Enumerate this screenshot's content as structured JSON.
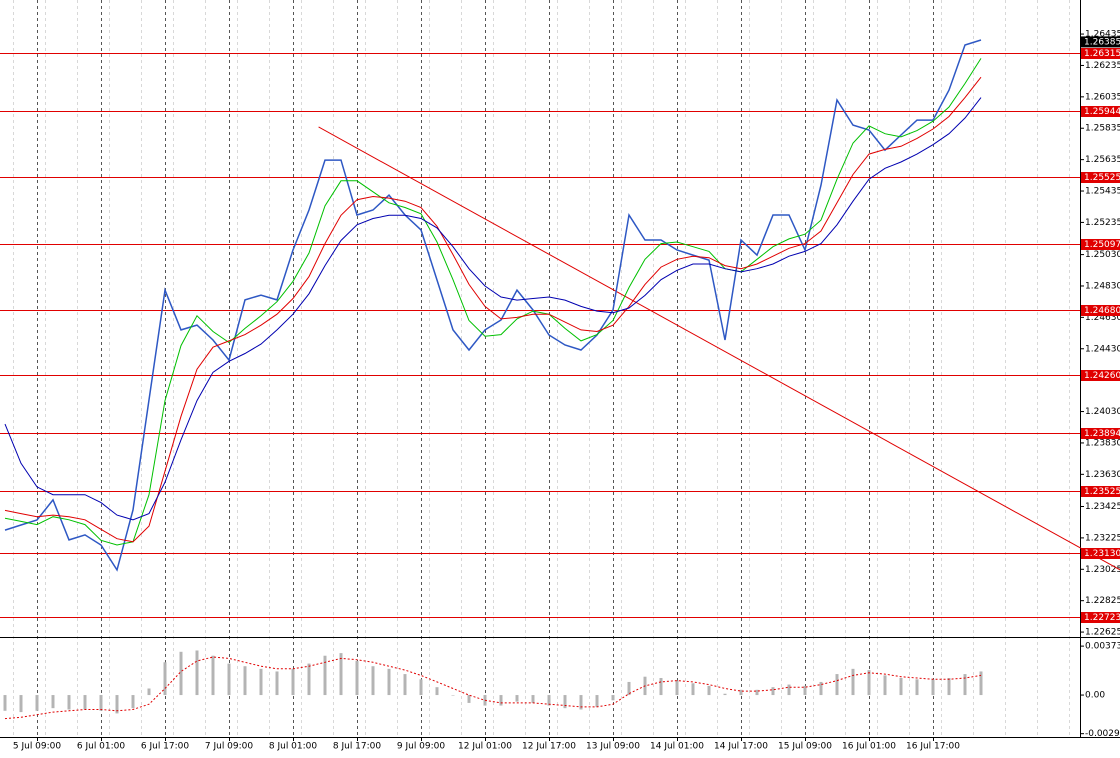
{
  "chart_data": [
    {
      "type": "line",
      "categories": [
        null,
        null,
        "5 Jul 09:00",
        null,
        null,
        null,
        "6 Jul 01:00",
        null,
        null,
        null,
        "6 Jul 17:00",
        null,
        null,
        null,
        "7 Jul 09:00",
        null,
        null,
        null,
        "8 Jul 01:00",
        null,
        null,
        null,
        "8 Jul 17:00",
        null,
        null,
        null,
        "9 Jul 09:00",
        null,
        null,
        null,
        "12 Jul 01:00",
        null,
        null,
        null,
        "12 Jul 17:00",
        null,
        null,
        null,
        "13 Jul 09:00",
        null,
        null,
        null,
        "14 Jul 01:00",
        null,
        null,
        null,
        "14 Jul 17:00",
        null,
        null,
        null,
        "15 Jul 09:00",
        null,
        null,
        null,
        "16 Jul 01:00",
        null,
        null,
        null,
        "16 Jul 17:00",
        null,
        null,
        null
      ],
      "series": [
        {
          "color": "#2e58c4",
          "values": [
            1.23275,
            1.23307,
            1.23339,
            1.23467,
            1.23212,
            1.23244,
            1.2318,
            1.23021,
            1.23403,
            1.24104,
            1.24804,
            1.2455,
            1.24581,
            1.24486,
            1.24358,
            1.24741,
            1.24772,
            1.24741,
            1.25059,
            1.25314,
            1.25632,
            1.25632,
            1.25282,
            1.25314,
            1.25409,
            1.25282,
            1.25187,
            1.24868,
            1.2455,
            1.24422,
            1.2455,
            1.24613,
            1.24804,
            1.24677,
            1.24518,
            1.24454,
            1.24422,
            1.24518,
            1.24677,
            1.25282,
            1.25123,
            1.25123,
            1.25059,
            1.25027,
            1.24995,
            1.24486,
            1.25123,
            1.25027,
            1.25282,
            1.25282,
            1.25059,
            1.25473,
            1.26015,
            1.25855,
            1.25824,
            1.25696,
            1.25792,
            1.25887,
            1.25887,
            1.26078,
            1.26365,
            1.26397
          ]
        },
        {
          "color": "#00c000",
          "values": [
            1.2335,
            1.2333,
            1.2331,
            1.2336,
            1.2334,
            1.2331,
            1.2321,
            1.2318,
            1.232,
            1.235,
            1.241,
            1.2445,
            1.2464,
            1.2454,
            1.2447,
            1.2456,
            1.2464,
            1.2473,
            1.2486,
            1.2504,
            1.2534,
            1.255,
            1.255,
            1.2543,
            1.2536,
            1.2533,
            1.2529,
            1.2511,
            1.2487,
            1.2461,
            1.2451,
            1.2452,
            1.2462,
            1.2467,
            1.2465,
            1.2456,
            1.2448,
            1.2452,
            1.2461,
            1.2482,
            1.25,
            1.251,
            1.2511,
            1.2508,
            1.2505,
            1.2494,
            1.2492,
            1.25,
            1.2508,
            1.2513,
            1.2516,
            1.2525,
            1.2551,
            1.2574,
            1.2585,
            1.258,
            1.2578,
            1.2582,
            1.2588,
            1.2597,
            1.2612,
            1.2628
          ]
        },
        {
          "color": "#e00000",
          "values": [
            1.234,
            1.2338,
            1.2336,
            1.2337,
            1.2336,
            1.2334,
            1.2328,
            1.2322,
            1.232,
            1.233,
            1.2365,
            1.24,
            1.243,
            1.2444,
            1.2448,
            1.2452,
            1.2458,
            1.2465,
            1.2475,
            1.2489,
            1.251,
            1.2528,
            1.2538,
            1.254,
            1.2539,
            1.2537,
            1.2533,
            1.2521,
            1.2503,
            1.2484,
            1.247,
            1.2462,
            1.2463,
            1.2465,
            1.2465,
            1.246,
            1.2455,
            1.2454,
            1.2458,
            1.247,
            1.2484,
            1.2495,
            1.25,
            1.2502,
            1.2501,
            1.2496,
            1.2494,
            1.2497,
            1.2502,
            1.2507,
            1.251,
            1.2518,
            1.2536,
            1.2554,
            1.2567,
            1.257,
            1.2572,
            1.2577,
            1.2583,
            1.2591,
            1.2603,
            1.2616
          ]
        },
        {
          "color": "#0000b0",
          "values": [
            1.2395,
            1.237,
            1.2355,
            1.235,
            1.235,
            1.235,
            1.2345,
            1.2337,
            1.2334,
            1.2338,
            1.2358,
            1.2385,
            1.241,
            1.2428,
            1.2435,
            1.244,
            1.2446,
            1.2455,
            1.2465,
            1.2478,
            1.2496,
            1.2512,
            1.2522,
            1.2526,
            1.2528,
            1.2528,
            1.2526,
            1.252,
            1.2508,
            1.2494,
            1.2483,
            1.2476,
            1.2474,
            1.2475,
            1.2476,
            1.2474,
            1.247,
            1.2467,
            1.2466,
            1.2469,
            1.2477,
            1.2487,
            1.2493,
            1.2497,
            1.2497,
            1.2494,
            1.2492,
            1.2494,
            1.2497,
            1.2502,
            1.2505,
            1.251,
            1.2522,
            1.2537,
            1.2551,
            1.2558,
            1.2562,
            1.2567,
            1.2573,
            1.258,
            1.259,
            1.2603
          ]
        }
      ],
      "ylim": [
        1.226,
        1.26652
      ],
      "yticks": [
        {
          "value": 1.26435,
          "label": "1.26435"
        },
        {
          "value": 1.26235,
          "label": "1.26235"
        },
        {
          "value": 1.26035,
          "label": "1.26035"
        },
        {
          "value": 1.25835,
          "label": "1.25835"
        },
        {
          "value": 1.25635,
          "label": "1.25635"
        },
        {
          "value": 1.25435,
          "label": "1.25435"
        },
        {
          "value": 1.25235,
          "label": "1.25235"
        },
        {
          "value": 1.2503,
          "label": "1.25030"
        },
        {
          "value": 1.2483,
          "label": "1.24830"
        },
        {
          "value": 1.2463,
          "label": "1.24630"
        },
        {
          "value": 1.2443,
          "label": "1.24430"
        },
        {
          "value": 1.2403,
          "label": "1.24030"
        },
        {
          "value": 1.2383,
          "label": "1.23830"
        },
        {
          "value": 1.2363,
          "label": "1.23630"
        },
        {
          "value": 1.23425,
          "label": "1.23425"
        },
        {
          "value": 1.23225,
          "label": "1.23225"
        },
        {
          "value": 1.23025,
          "label": "1.23025"
        },
        {
          "value": 1.22825,
          "label": "1.22825"
        },
        {
          "value": 1.22625,
          "label": "1.22625"
        }
      ],
      "levels": [
        1.26315,
        1.25944,
        1.25525,
        1.25097,
        {
          "value": 1.2468,
          "label": "1.24680"
        },
        {
          "value": 1.2426,
          "label": "1.24260"
        },
        1.23894,
        1.23525,
        {
          "value": 1.2313,
          "label": "1.23130"
        },
        1.22723
      ],
      "level_color": "#e00000",
      "current_price": 1.26385,
      "trendline": {
        "x": [
          19.6,
          69.7
        ],
        "values": [
          1.25843,
          1.23021
        ],
        "color": "#e00000"
      },
      "grid": true
    },
    {
      "type": "bar",
      "values": [
        -0.0012,
        -0.0013,
        -0.0012,
        -0.001,
        -0.0011,
        -0.0011,
        -0.0012,
        -0.0014,
        -0.001,
        0.0005,
        0.0025,
        0.0033,
        0.0034,
        0.003,
        0.0024,
        0.0022,
        0.002,
        0.0018,
        0.002,
        0.0024,
        0.003,
        0.0032,
        0.0026,
        0.0022,
        0.002,
        0.0016,
        0.0012,
        0.0006,
        0.0,
        -0.0006,
        -0.0008,
        -0.0008,
        -0.0005,
        -0.0006,
        -0.0008,
        -0.001,
        -0.0011,
        -0.0009,
        -0.0004,
        0.001,
        0.0014,
        0.0013,
        0.0011,
        0.0009,
        0.0007,
        0.0001,
        0.0004,
        0.0004,
        0.0006,
        0.0008,
        0.0007,
        0.001,
        0.0016,
        0.002,
        0.0019,
        0.0015,
        0.0013,
        0.0012,
        0.0012,
        0.0013,
        0.0016,
        0.0018
      ],
      "color": "#b4b4b4",
      "signal": {
        "color": "#e00000",
        "values": [
          -0.0018,
          -0.0017,
          -0.0015,
          -0.0013,
          -0.0012,
          -0.0011,
          -0.0011,
          -0.0012,
          -0.0011,
          -0.0007,
          0.0005,
          0.0018,
          0.0026,
          0.0029,
          0.0028,
          0.0025,
          0.0022,
          0.002,
          0.002,
          0.0022,
          0.0025,
          0.0028,
          0.0027,
          0.0025,
          0.0022,
          0.0019,
          0.0015,
          0.001,
          0.0005,
          0.0,
          -0.0004,
          -0.0006,
          -0.0006,
          -0.0006,
          -0.0007,
          -0.0008,
          -0.0009,
          -0.0009,
          -0.0007,
          0.0001,
          0.0007,
          0.001,
          0.0011,
          0.001,
          0.0008,
          0.0005,
          0.0003,
          0.0003,
          0.0004,
          0.0006,
          0.0006,
          0.0008,
          0.0011,
          0.0015,
          0.0017,
          0.0016,
          0.0014,
          0.0013,
          0.0012,
          0.0012,
          0.0013,
          0.0015
        ]
      },
      "ylim": [
        -0.0032,
        0.0042
      ],
      "yticks": [
        0.003733,
        {
          "value": 0,
          "label": "0.00"
        },
        -0.002946
      ]
    }
  ]
}
